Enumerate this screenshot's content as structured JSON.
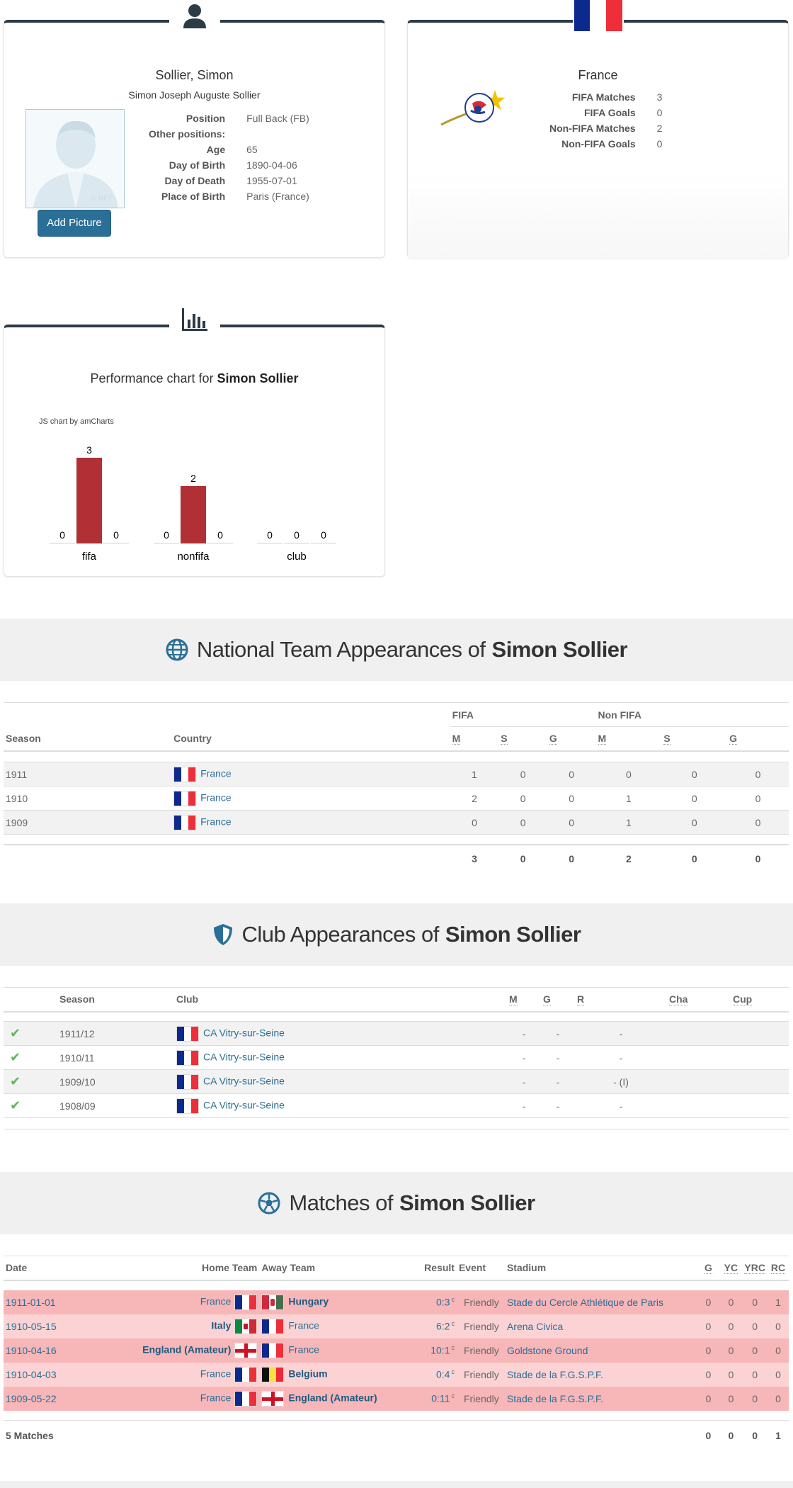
{
  "profile": {
    "name": "Sollier, Simon",
    "full_name": "Simon Joseph Auguste Sollier",
    "add_picture": "Add Picture",
    "photo_watermark": "© NFT",
    "fields": [
      {
        "label": "Position",
        "value": "Full Back (FB)"
      },
      {
        "label": "Other positions:",
        "value": ""
      },
      {
        "label": "Age",
        "value": "65"
      },
      {
        "label": "Day of Birth",
        "value": "1890-04-06"
      },
      {
        "label": "Day of Death",
        "value": "1955-07-01"
      },
      {
        "label": "Place of Birth",
        "value": "Paris (France)"
      }
    ]
  },
  "country_card": {
    "country": "France",
    "logo_text": "FÉDÉRATION FRANÇAISE DE FOOTBALL",
    "stats": [
      {
        "label": "FIFA Matches",
        "value": "3"
      },
      {
        "label": "FIFA Goals",
        "value": "0"
      },
      {
        "label": "Non-FIFA Matches",
        "value": "2"
      },
      {
        "label": "Non-FIFA Goals",
        "value": "0"
      }
    ]
  },
  "chart_card": {
    "title_prefix": "Performance chart for",
    "title_name": "Simon Sollier",
    "credit": "JS chart by amCharts"
  },
  "chart_data": {
    "type": "bar",
    "categories": [
      "fifa",
      "nonfifa",
      "club"
    ],
    "series": [
      {
        "values": [
          0,
          0,
          0
        ]
      },
      {
        "values": [
          3,
          2,
          0
        ]
      },
      {
        "values": [
          0,
          0,
          0
        ]
      }
    ],
    "bar_color": "#b03035",
    "grid": false
  },
  "national": {
    "title_prefix": "National Team Appearances of",
    "title_name": "Simon Sollier",
    "group_fifa": "FIFA",
    "group_nonfifa": "Non FIFA",
    "headers": [
      "Season",
      "Country",
      "M",
      "S",
      "G",
      "M",
      "S",
      "G"
    ],
    "rows": [
      {
        "season": "1911",
        "country": "France",
        "fm": "1",
        "fs": "0",
        "fg": "0",
        "nm": "0",
        "ns": "0",
        "ng": "0"
      },
      {
        "season": "1910",
        "country": "France",
        "fm": "2",
        "fs": "0",
        "fg": "0",
        "nm": "1",
        "ns": "0",
        "ng": "0"
      },
      {
        "season": "1909",
        "country": "France",
        "fm": "0",
        "fs": "0",
        "fg": "0",
        "nm": "1",
        "ns": "0",
        "ng": "0"
      }
    ],
    "totals": {
      "fm": "3",
      "fs": "0",
      "fg": "0",
      "nm": "2",
      "ns": "0",
      "ng": "0"
    }
  },
  "club": {
    "title_prefix": "Club Appearances of",
    "title_name": "Simon Sollier",
    "headers": [
      "Season",
      "Club",
      "M",
      "G",
      "R",
      "Cha",
      "Cup"
    ],
    "rows": [
      {
        "season": "1911/12",
        "club": "CA Vitry-sur-Seine",
        "m": "-",
        "g": "-",
        "r": "-"
      },
      {
        "season": "1910/11",
        "club": "CA Vitry-sur-Seine",
        "m": "-",
        "g": "-",
        "r": "-"
      },
      {
        "season": "1909/10",
        "club": "CA Vitry-sur-Seine",
        "m": "-",
        "g": "-",
        "r": "- (I)"
      },
      {
        "season": "1908/09",
        "club": "CA Vitry-sur-Seine",
        "m": "-",
        "g": "-",
        "r": "-"
      }
    ]
  },
  "matches": {
    "title_prefix": "Matches of",
    "title_name": "Simon Sollier",
    "headers": [
      "Date",
      "Home Team",
      "Away Team",
      "Result",
      "Event",
      "Stadium",
      "G",
      "YC",
      "YRC",
      "RC"
    ],
    "rows": [
      {
        "date": "1911-01-01",
        "home": "France",
        "home_flag": "france",
        "away": "Hungary",
        "away_flag": "hungary",
        "winner": "away",
        "result": "0:3",
        "sup": "c",
        "event": "Friendly",
        "stadium": "Stade du Cercle Athlétique de Paris",
        "g": "0",
        "yc": "0",
        "yrc": "0",
        "rc": "1"
      },
      {
        "date": "1910-05-15",
        "home": "Italy",
        "home_flag": "italy",
        "away": "France",
        "away_flag": "france",
        "winner": "home",
        "result": "6:2",
        "sup": "c",
        "event": "Friendly",
        "stadium": "Arena Civica",
        "g": "0",
        "yc": "0",
        "yrc": "0",
        "rc": "0"
      },
      {
        "date": "1910-04-16",
        "home": "England (Amateur)",
        "home_flag": "england",
        "away": "France",
        "away_flag": "france",
        "winner": "home",
        "result": "10:1",
        "sup": "c",
        "event": "Friendly",
        "stadium": "Goldstone Ground",
        "g": "0",
        "yc": "0",
        "yrc": "0",
        "rc": "0"
      },
      {
        "date": "1910-04-03",
        "home": "France",
        "home_flag": "france",
        "away": "Belgium",
        "away_flag": "belgium",
        "winner": "away",
        "result": "0:4",
        "sup": "c",
        "event": "Friendly",
        "stadium": "Stade de la F.G.S.P.F.",
        "g": "0",
        "yc": "0",
        "yrc": "0",
        "rc": "0"
      },
      {
        "date": "1909-05-22",
        "home": "France",
        "home_flag": "france",
        "away": "England (Amateur)",
        "away_flag": "england",
        "winner": "away",
        "result": "0:11",
        "sup": "c",
        "event": "Friendly",
        "stadium": "Stade de la F.G.S.P.F.",
        "g": "0",
        "yc": "0",
        "yrc": "0",
        "rc": "0"
      }
    ],
    "footer": {
      "label": "5 Matches",
      "g": "0",
      "yc": "0",
      "yrc": "0",
      "rc": "1"
    },
    "row_colors": [
      "#f7b6b8",
      "#fcd3d4"
    ]
  }
}
